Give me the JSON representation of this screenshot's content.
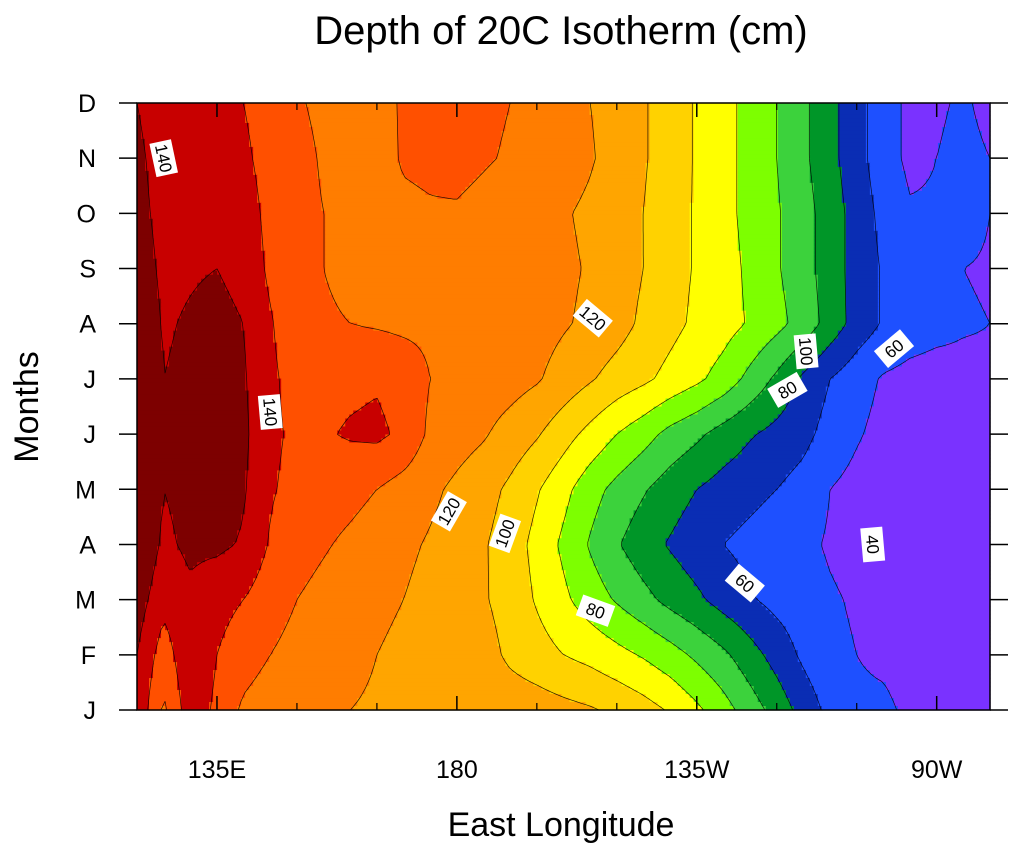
{
  "chart_data": {
    "type": "contour",
    "title": "Depth of 20C Isotherm (cm)",
    "xlabel": "East Longitude",
    "ylabel": "Months",
    "xlim": [
      120,
      280
    ],
    "ylim": [
      1,
      12
    ],
    "x_ticks": [
      {
        "value": 135,
        "label": "135E"
      },
      {
        "value": 180,
        "label": "180"
      },
      {
        "value": 225,
        "label": "135W"
      },
      {
        "value": 270,
        "label": "90W"
      }
    ],
    "x_minor_ticks": [
      150,
      165,
      195,
      210,
      240,
      255
    ],
    "y_ticks": [
      {
        "value": 1,
        "label": "J"
      },
      {
        "value": 2,
        "label": "F"
      },
      {
        "value": 3,
        "label": "M"
      },
      {
        "value": 4,
        "label": "A"
      },
      {
        "value": 5,
        "label": "M"
      },
      {
        "value": 6,
        "label": "J"
      },
      {
        "value": 7,
        "label": "J"
      },
      {
        "value": 8,
        "label": "A"
      },
      {
        "value": 9,
        "label": "S"
      },
      {
        "value": 10,
        "label": "O"
      },
      {
        "value": 11,
        "label": "N"
      },
      {
        "value": 12,
        "label": "D"
      }
    ],
    "contour_levels": [
      30,
      40,
      50,
      60,
      70,
      80,
      90,
      100,
      110,
      120,
      130,
      140,
      150
    ],
    "fill_colors": [
      "#a020f0",
      "#7a32ff",
      "#1e50ff",
      "#0a2db4",
      "#009628",
      "#3cd23c",
      "#7dff00",
      "#ffff00",
      "#ffd200",
      "#ffa500",
      "#ff7d00",
      "#ff5000",
      "#c80000",
      "#7d0000"
    ],
    "contour_labels": [
      {
        "value": 140,
        "x": 125,
        "y": 11.0
      },
      {
        "value": 120,
        "x": 205.5,
        "y": 8.1
      },
      {
        "value": 100,
        "x": 245.5,
        "y": 7.5
      },
      {
        "value": 60,
        "x": 262,
        "y": 7.55
      },
      {
        "value": 80,
        "x": 242,
        "y": 6.8
      },
      {
        "value": 140,
        "x": 145,
        "y": 6.4
      },
      {
        "value": 120,
        "x": 178.5,
        "y": 4.6
      },
      {
        "value": 100,
        "x": 189,
        "y": 4.2
      },
      {
        "value": 40,
        "x": 258,
        "y": 4.0
      },
      {
        "value": 60,
        "x": 234,
        "y": 3.3
      },
      {
        "value": 80,
        "x": 206,
        "y": 2.8
      }
    ],
    "lon": [
      120,
      125,
      130,
      135,
      140,
      145,
      150,
      155,
      160,
      165,
      170,
      175,
      180,
      185,
      190,
      195,
      200,
      205,
      210,
      215,
      220,
      225,
      230,
      235,
      240,
      245,
      250,
      255,
      260,
      265,
      270,
      275,
      280
    ],
    "month": [
      1,
      2,
      3,
      4,
      5,
      6,
      7,
      8,
      9,
      10,
      11,
      12
    ],
    "depth": [
      [
        148,
        128,
        146,
        138,
        128,
        124,
        122,
        121,
        120,
        119,
        119,
        118,
        118,
        117,
        116,
        115,
        113,
        111,
        108,
        104,
        99,
        92,
        84,
        75,
        66,
        56,
        47,
        42,
        42,
        38,
        35,
        38,
        34
      ],
      [
        150,
        135,
        148,
        140,
        135,
        130,
        127,
        125,
        122,
        120,
        118,
        117,
        116,
        114,
        108,
        104,
        100,
        97,
        93,
        89,
        84,
        78,
        72,
        64,
        56,
        48,
        42,
        40,
        38,
        36,
        34,
        34,
        32
      ],
      [
        155,
        143,
        148,
        143,
        140,
        134,
        130,
        127,
        124,
        122,
        120,
        117,
        115,
        111,
        106,
        99,
        92,
        85,
        79,
        73,
        67,
        62,
        56,
        51,
        47,
        44,
        41,
        39,
        37,
        36,
        34,
        33,
        32
      ],
      [
        160,
        148,
        152,
        152,
        149,
        139,
        134,
        131,
        128,
        125,
        122,
        119,
        116,
        111,
        105,
        97,
        88,
        79,
        71,
        64,
        59,
        54,
        50,
        47,
        44,
        42,
        39,
        37,
        35,
        32,
        30,
        33,
        33
      ],
      [
        162,
        150,
        153,
        155,
        151,
        141,
        137,
        135,
        133,
        130,
        126,
        122,
        118,
        114,
        108,
        101,
        93,
        84,
        77,
        71,
        65,
        60,
        56,
        53,
        50,
        46,
        40,
        37,
        35,
        33,
        32,
        33,
        34
      ],
      [
        162,
        151,
        153,
        156,
        152,
        142,
        138,
        139,
        141,
        142,
        138,
        128,
        124,
        121,
        116,
        111,
        104,
        97,
        90,
        84,
        77,
        72,
        66,
        61,
        57,
        53,
        46,
        41,
        37,
        36,
        35,
        36,
        37
      ],
      [
        160,
        150,
        152,
        155,
        151,
        142,
        136,
        137,
        138,
        139,
        136,
        130,
        127,
        126,
        124,
        121,
        116,
        111,
        106,
        102,
        97,
        92,
        86,
        77,
        68,
        58,
        50,
        44,
        39,
        37,
        36,
        37,
        38
      ],
      [
        158,
        149,
        151,
        153,
        150,
        141,
        133,
        131,
        130,
        129,
        128,
        128,
        127,
        127,
        126,
        124,
        121,
        118,
        114,
        108,
        103,
        98,
        94,
        89,
        83,
        76,
        66,
        56,
        49,
        45,
        43,
        41,
        40
      ],
      [
        155,
        148,
        149,
        150,
        147,
        138,
        133,
        130,
        128,
        127,
        127,
        127,
        127,
        126,
        125,
        124,
        122,
        119,
        115,
        110,
        104,
        99,
        94,
        88,
        81,
        74,
        65,
        56,
        49,
        44,
        42,
        40,
        39
      ],
      [
        153,
        147,
        148,
        147,
        145,
        137,
        133,
        130,
        128,
        127,
        128,
        129,
        129,
        127,
        125,
        123,
        121,
        118,
        114,
        110,
        104,
        99,
        93,
        87,
        81,
        74,
        65,
        56,
        47,
        41,
        41,
        44,
        40
      ],
      [
        152,
        146,
        147,
        145,
        142,
        136,
        133,
        129,
        127,
        126,
        131,
        132,
        133,
        131,
        129,
        127,
        125,
        121,
        116,
        111,
        105,
        99,
        93,
        87,
        80,
        72,
        63,
        54,
        44,
        38,
        40,
        44,
        40
      ],
      [
        150,
        145,
        145,
        143,
        140,
        135,
        131,
        128,
        126,
        127,
        131,
        133,
        133,
        132,
        130,
        128,
        125,
        120,
        116,
        111,
        105,
        99,
        93,
        87,
        80,
        72,
        63,
        54,
        44,
        38,
        38,
        42,
        36
      ]
    ]
  }
}
